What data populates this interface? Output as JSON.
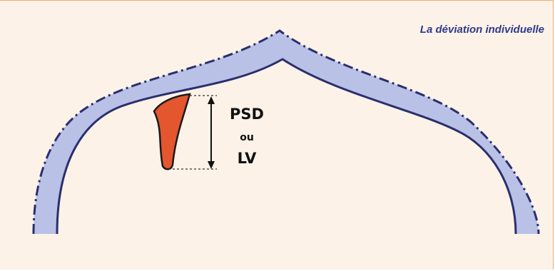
{
  "title": "La déviation individuelle",
  "labels": {
    "psd": "PSD",
    "ou": "ou",
    "lv": "LV"
  },
  "colors": {
    "background": "#fdf2e7",
    "border": "#f4a86a",
    "title": "#2e3a8c",
    "normal_band": "#b9c1e6",
    "outline": "#2a2f6e",
    "defect": "#e4562e"
  }
}
